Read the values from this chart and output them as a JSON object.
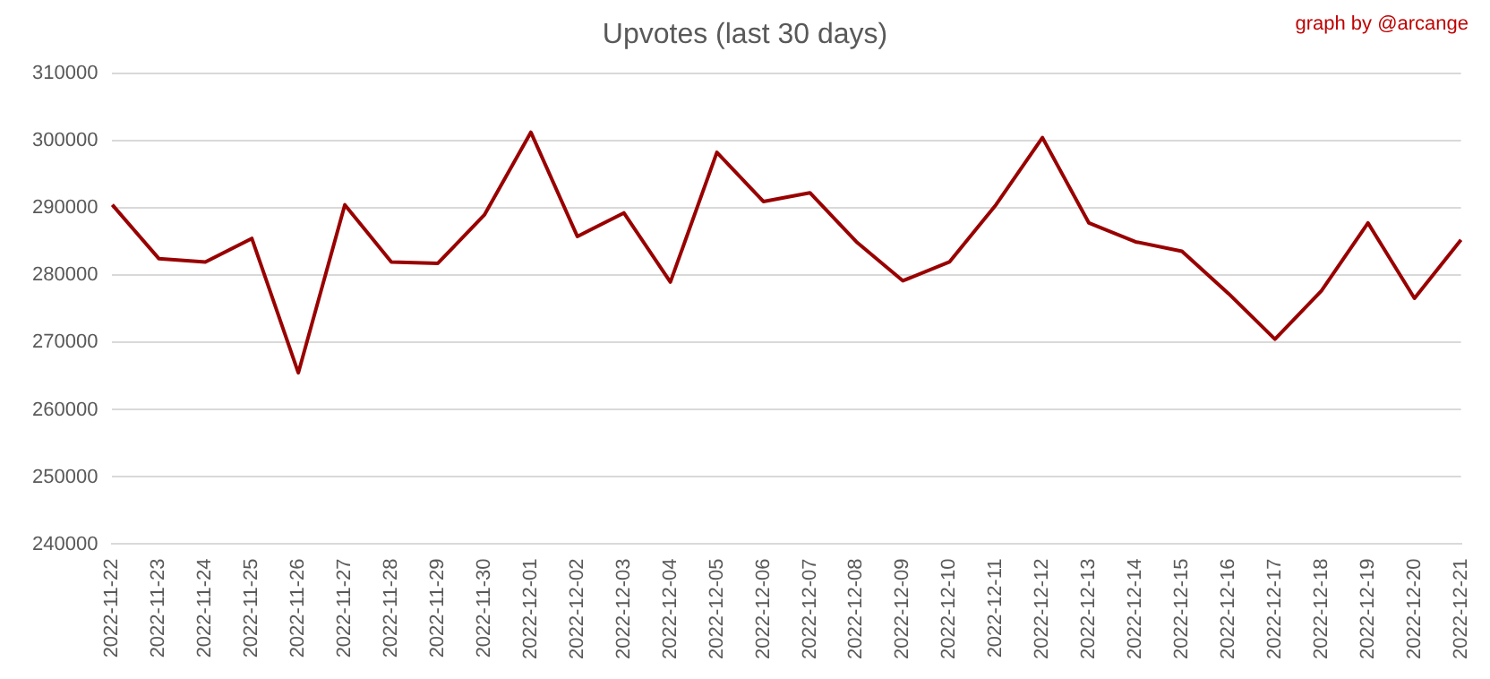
{
  "chart_data": {
    "type": "line",
    "title": "Upvotes (last 30 days)",
    "annotations": [
      "graph by @arcange"
    ],
    "categories": [
      "2022-11-22",
      "2022-11-23",
      "2022-11-24",
      "2022-11-25",
      "2022-11-26",
      "2022-11-27",
      "2022-11-28",
      "2022-11-29",
      "2022-11-30",
      "2022-12-01",
      "2022-12-02",
      "2022-12-03",
      "2022-12-04",
      "2022-12-05",
      "2022-12-06",
      "2022-12-07",
      "2022-12-08",
      "2022-12-09",
      "2022-12-10",
      "2022-12-11",
      "2022-12-12",
      "2022-12-13",
      "2022-12-14",
      "2022-12-15",
      "2022-12-16",
      "2022-12-17",
      "2022-12-18",
      "2022-12-19",
      "2022-12-20",
      "2022-12-21"
    ],
    "series": [
      {
        "color": "#990000",
        "values": [
          290500,
          282500,
          282000,
          285500,
          265500,
          290500,
          282000,
          281800,
          289000,
          301300,
          285800,
          289300,
          279000,
          298300,
          291000,
          292300,
          285000,
          279200,
          282000,
          290500,
          300500,
          287800,
          285000,
          283600,
          277300,
          270500,
          277700,
          287800,
          276600,
          285300
        ]
      }
    ],
    "ylim": [
      240000,
      310000
    ],
    "yticks": [
      240000,
      250000,
      260000,
      270000,
      280000,
      290000,
      300000,
      310000
    ],
    "grid": "y",
    "legend": false,
    "marker": "none",
    "line_style": "solid"
  }
}
